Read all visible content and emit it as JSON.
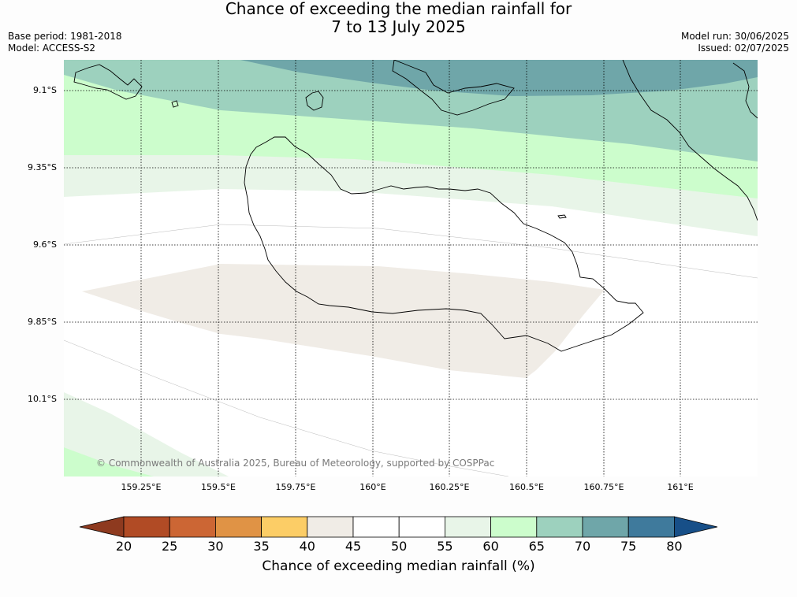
{
  "title_line1": "Chance of exceeding the median rainfall for",
  "title_line2": "7 to 13 July 2025",
  "base_period": "Base period: 1981-2018",
  "model": "Model: ACCESS-S2",
  "model_run": "Model run: 30/06/2025",
  "issued": "Issued: 02/07/2025",
  "copyright": "© Commonwealth of Australia 2025, Bureau of Meteorology, supported by COSPPac",
  "lat_ticks": [
    "9.1°S",
    "9.35°S",
    "9.6°S",
    "9.85°S",
    "10.1°S"
  ],
  "lon_ticks": [
    "159.25°E",
    "159.5°E",
    "159.75°E",
    "160°E",
    "160.25°E",
    "160.5°E",
    "160.75°E",
    "161°E"
  ],
  "colorbar": {
    "title": "Chance of exceeding median rainfall (%)",
    "ticks": [
      "20",
      "25",
      "30",
      "35",
      "40",
      "45",
      "50",
      "55",
      "60",
      "65",
      "70",
      "75",
      "80"
    ],
    "low_extend_color": "#8e3a1f",
    "high_extend_color": "#174f88",
    "colors": [
      "#b14b25",
      "#cc6634",
      "#e09345",
      "#fccd66",
      "#f0ece6",
      "#ffffff",
      "#ffffff",
      "#e8f5e8",
      "#ccfdcc",
      "#9dd1be",
      "#6fa6a9",
      "#3f7a9c"
    ]
  },
  "map_colors": {
    "band_70_75": "#6fa6a9",
    "band_65_70": "#9dd1be",
    "band_60_65": "#ccfdcc",
    "band_55_60": "#e8f5e8",
    "band_40_45": "#f0ece6",
    "coast": "#000000"
  }
}
